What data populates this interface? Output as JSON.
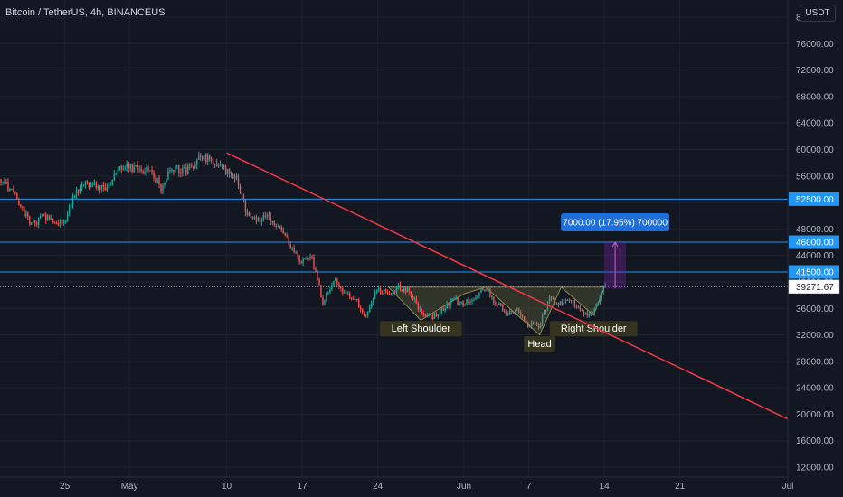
{
  "header": {
    "title": "Bitcoin / TetherUS, 4h, BINANCEUS",
    "currency": "USDT"
  },
  "colors": {
    "background": "#131722",
    "up": "#26a69a",
    "down": "#ef5350",
    "level": "#2196f3",
    "trend": "#f23645",
    "pattern": "#6b6b33",
    "measure": "#7b1fa2",
    "measure_label": "#1e6fd9"
  },
  "chart_data": {
    "type": "candlestick",
    "ylim": [
      9000,
      80000
    ],
    "y_ticks": [
      12000,
      16000,
      20000,
      24000,
      28000,
      32000,
      36000,
      40000,
      44000,
      48000,
      52000,
      56000,
      60000,
      64000,
      68000,
      72000,
      76000,
      80000
    ],
    "y_tick_labels": [
      "12000.00",
      "16000.00",
      "20000.00",
      "24000.00",
      "28000.00",
      "32000.00",
      "36000.00",
      "40000.00",
      "44000.00",
      "48000.00",
      "",
      "56000.00",
      "60000.00",
      "64000.00",
      "68000.00",
      "72000.00",
      "76000.00",
      "80000.00"
    ],
    "x_axis": {
      "start": "2021-04-19",
      "end": "2021-07-01",
      "ticks": [
        {
          "date": "2021-04-25",
          "label": "25"
        },
        {
          "date": "2021-05-01",
          "label": "May"
        },
        {
          "date": "2021-05-10",
          "label": "10"
        },
        {
          "date": "2021-05-17",
          "label": "17"
        },
        {
          "date": "2021-05-24",
          "label": "24"
        },
        {
          "date": "2021-06-01",
          "label": "Jun"
        },
        {
          "date": "2021-06-07",
          "label": "7"
        },
        {
          "date": "2021-06-14",
          "label": "14"
        },
        {
          "date": "2021-06-21",
          "label": "21"
        },
        {
          "date": "2021-07-01",
          "label": "Jul"
        }
      ]
    },
    "last_price": 39271.67,
    "last_price_label": "39271.67",
    "path": [
      [
        "2021-04-19",
        55500
      ],
      [
        "2021-04-20",
        54000
      ],
      [
        "2021-04-21",
        51500
      ],
      [
        "2021-04-22",
        48500
      ],
      [
        "2021-04-23",
        49800
      ],
      [
        "2021-04-24",
        49000
      ],
      [
        "2021-04-25",
        48800
      ],
      [
        "2021-04-26",
        53500
      ],
      [
        "2021-04-27",
        55000
      ],
      [
        "2021-04-28",
        54800
      ],
      [
        "2021-04-29",
        53800
      ],
      [
        "2021-04-30",
        57000
      ],
      [
        "2021-05-01",
        57800
      ],
      [
        "2021-05-02",
        56500
      ],
      [
        "2021-05-03",
        57200
      ],
      [
        "2021-05-04",
        54000
      ],
      [
        "2021-05-05",
        57500
      ],
      [
        "2021-05-06",
        56500
      ],
      [
        "2021-05-07",
        57800
      ],
      [
        "2021-05-08",
        58800
      ],
      [
        "2021-05-09",
        58000
      ],
      [
        "2021-05-10",
        56500
      ],
      [
        "2021-05-11",
        56200
      ],
      [
        "2021-05-12",
        50000
      ],
      [
        "2021-05-13",
        49500
      ],
      [
        "2021-05-14",
        49800
      ],
      [
        "2021-05-15",
        48000
      ],
      [
        "2021-05-16",
        45500
      ],
      [
        "2021-05-17",
        43000
      ],
      [
        "2021-05-18",
        43500
      ],
      [
        "2021-05-19",
        37000
      ],
      [
        "2021-05-20",
        40500
      ],
      [
        "2021-05-21",
        38000
      ],
      [
        "2021-05-22",
        37500
      ],
      [
        "2021-05-23",
        34800
      ],
      [
        "2021-05-24",
        38800
      ],
      [
        "2021-05-25",
        38300
      ],
      [
        "2021-05-26",
        39300
      ],
      [
        "2021-05-27",
        38400
      ],
      [
        "2021-05-28",
        35700
      ],
      [
        "2021-05-29",
        34600
      ],
      [
        "2021-05-30",
        35700
      ],
      [
        "2021-05-31",
        37300
      ],
      [
        "2021-06-01",
        36700
      ],
      [
        "2021-06-02",
        37600
      ],
      [
        "2021-06-03",
        39300
      ],
      [
        "2021-06-04",
        36900
      ],
      [
        "2021-06-05",
        35500
      ],
      [
        "2021-06-06",
        35800
      ],
      [
        "2021-06-07",
        33600
      ],
      [
        "2021-06-08",
        33400
      ],
      [
        "2021-06-09",
        37400
      ],
      [
        "2021-06-10",
        36700
      ],
      [
        "2021-06-11",
        37300
      ],
      [
        "2021-06-12",
        35500
      ],
      [
        "2021-06-13",
        35000
      ],
      [
        "2021-06-14",
        39271.67
      ]
    ],
    "horizontal_levels": [
      {
        "price": 52500,
        "label": "52500.00"
      },
      {
        "price": 46000,
        "label": "46000.00"
      },
      {
        "price": 41500,
        "label": "41500.00"
      }
    ],
    "trendline": {
      "from": [
        "2021-05-10",
        59500
      ],
      "to": [
        "2021-07-02",
        18500
      ]
    },
    "pattern": {
      "neckline": 39200,
      "points": [
        [
          "2021-05-25",
          39200
        ],
        [
          "2021-05-28",
          34200
        ],
        [
          "2021-06-01",
          38200
        ],
        [
          "2021-06-03",
          39200
        ],
        [
          "2021-06-08",
          32000
        ],
        [
          "2021-06-10",
          39200
        ],
        [
          "2021-06-13",
          35000
        ],
        [
          "2021-06-14",
          39200
        ]
      ],
      "labels": [
        {
          "text": "Left Shoulder",
          "date": "2021-05-28",
          "price": 33000
        },
        {
          "text": "Head",
          "date": "2021-06-08",
          "price": 30700
        },
        {
          "text": "Right Shoulder",
          "date": "2021-06-13",
          "price": 33000
        }
      ]
    },
    "measure": {
      "from_date": "2021-06-14",
      "to_date": "2021-06-16",
      "low": 39000,
      "high": 46000,
      "label": "7000.00 (17.95%) 700000"
    }
  }
}
